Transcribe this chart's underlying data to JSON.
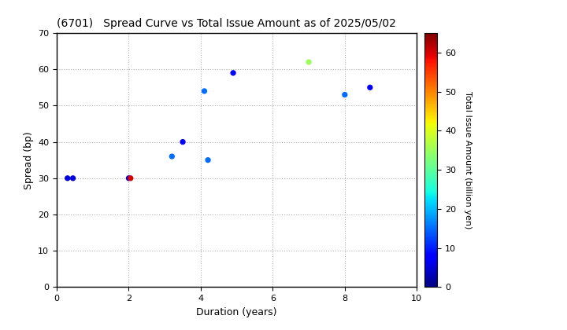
{
  "title": "(6701)   Spread Curve vs Total Issue Amount as of 2025/05/02",
  "xlabel": "Duration (years)",
  "ylabel": "Spread (bp)",
  "colorbar_label": "Total Issue Amount (billion yen)",
  "xlim": [
    0,
    10
  ],
  "ylim": [
    0,
    70
  ],
  "xticks": [
    0,
    2,
    4,
    6,
    8,
    10
  ],
  "yticks": [
    0,
    10,
    20,
    30,
    40,
    50,
    60,
    70
  ],
  "colorbar_ticks": [
    0,
    10,
    20,
    30,
    40,
    50,
    60
  ],
  "colormap": "jet",
  "vmin": 0,
  "vmax": 65,
  "points": [
    {
      "duration": 0.3,
      "spread": 30,
      "amount": 5
    },
    {
      "duration": 0.45,
      "spread": 30,
      "amount": 5
    },
    {
      "duration": 2.0,
      "spread": 30,
      "amount": 5
    },
    {
      "duration": 2.05,
      "spread": 30,
      "amount": 60
    },
    {
      "duration": 3.2,
      "spread": 36,
      "amount": 15
    },
    {
      "duration": 3.5,
      "spread": 40,
      "amount": 8
    },
    {
      "duration": 4.1,
      "spread": 54,
      "amount": 15
    },
    {
      "duration": 4.2,
      "spread": 35,
      "amount": 15
    },
    {
      "duration": 4.9,
      "spread": 59,
      "amount": 8
    },
    {
      "duration": 7.0,
      "spread": 62,
      "amount": 35
    },
    {
      "duration": 8.0,
      "spread": 53,
      "amount": 15
    },
    {
      "duration": 8.7,
      "spread": 55,
      "amount": 8
    }
  ],
  "marker_size": 18,
  "background_color": "#ffffff",
  "grid_color": "#b0b0b0",
  "grid_linestyle": ":"
}
